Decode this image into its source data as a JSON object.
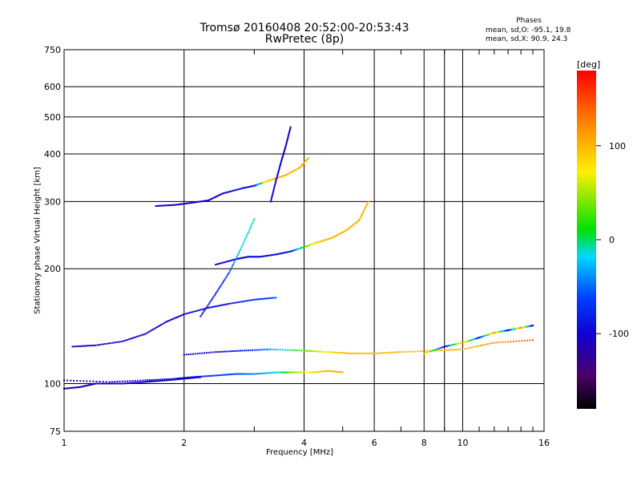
{
  "chart_data": {
    "type": "scatter",
    "title": "Tromsø 20160408 20:52:00-20:53:43",
    "subtitle": "RwPretec (8p)",
    "xlabel": "Frequency [MHz]",
    "ylabel": "Stationary phase Virtual Height [km]",
    "x_scale": "log",
    "y_scale": "log",
    "xlim": [
      1,
      16
    ],
    "ylim": [
      75,
      750
    ],
    "x_ticks": [
      1,
      2,
      4,
      6,
      8,
      10,
      16
    ],
    "y_ticks": [
      75,
      100,
      200,
      300,
      400,
      500,
      600,
      750
    ],
    "grid": true,
    "phases": {
      "heading": "Phases",
      "o_mode": "mean, sd,O: -95.1, 19.8",
      "x_mode": "mean, sd,X:  90.9, 24.3"
    },
    "colorbar": {
      "label": "[deg]",
      "ticks": [
        100,
        0,
        -100
      ],
      "range": [
        -180,
        180
      ],
      "colormap": "rainbow (black-purple-blue-cyan-green-yellow-red)"
    },
    "traces": [
      {
        "x": [
          1.0,
          1.3,
          1.6,
          1.9,
          2.1,
          2.4,
          2.7,
          3.0,
          3.4,
          3.8,
          4.2,
          4.6,
          5.0
        ],
        "y": [
          102,
          101,
          102,
          103,
          104,
          105,
          106,
          106,
          107,
          107,
          107,
          108,
          107
        ],
        "phase": [
          -100,
          -100,
          -100,
          -95,
          -90,
          -60,
          -60,
          -40,
          -20,
          50,
          80,
          100,
          100
        ]
      },
      {
        "x": [
          1.05,
          1.2,
          1.4,
          1.6,
          1.8,
          2.0,
          2.3,
          2.6,
          3.0,
          3.4
        ],
        "y": [
          125,
          126,
          129,
          135,
          145,
          152,
          158,
          162,
          166,
          168
        ],
        "phase": [
          -110,
          -110,
          -105,
          -105,
          -100,
          -100,
          -95,
          -90,
          -80,
          -50
        ]
      },
      {
        "x": [
          2.0,
          2.4,
          2.8,
          3.3,
          4.0,
          4.6,
          5.2,
          6.0,
          7.0,
          8.5,
          10,
          12,
          15
        ],
        "y": [
          119,
          121,
          122,
          123,
          122,
          121,
          120,
          120,
          121,
          122,
          123,
          128,
          130
        ],
        "phase": [
          -100,
          -95,
          -80,
          -40,
          30,
          80,
          100,
          100,
          100,
          100,
          100,
          120,
          140
        ]
      },
      {
        "x": [
          2.4,
          2.7,
          2.9,
          3.1,
          3.4,
          3.7,
          4.0,
          4.3,
          4.7,
          5.1,
          5.5,
          5.8
        ],
        "y": [
          205,
          212,
          215,
          215,
          218,
          222,
          228,
          234,
          241,
          252,
          268,
          300
        ],
        "phase": [
          -100,
          -100,
          -95,
          -90,
          -90,
          -80,
          20,
          90,
          100,
          100,
          100,
          100
        ]
      },
      {
        "x": [
          1.7,
          1.9,
          2.1,
          2.3,
          2.5,
          2.8,
          3.0,
          3.2,
          3.4,
          3.6,
          3.9,
          4.1
        ],
        "y": [
          292,
          294,
          298,
          302,
          315,
          325,
          330,
          338,
          345,
          352,
          368,
          390
        ],
        "phase": [
          -105,
          -105,
          -100,
          -100,
          -95,
          -90,
          -85,
          80,
          100,
          100,
          100,
          100
        ]
      },
      {
        "x": [
          3.3,
          3.4,
          3.5,
          3.6,
          3.7
        ],
        "y": [
          300,
          340,
          380,
          420,
          470
        ],
        "phase": [
          -100,
          -100,
          -100,
          -100,
          -100
        ]
      },
      {
        "x": [
          1.0,
          1.1,
          1.2,
          1.4,
          1.6,
          1.8,
          2.0,
          2.2
        ],
        "y": [
          97,
          98,
          100,
          100,
          101,
          102,
          103,
          104
        ],
        "phase": [
          -120,
          -115,
          -110,
          -110,
          -105,
          -100,
          -100,
          -100
        ]
      },
      {
        "x": [
          2.2,
          2.4,
          2.6,
          2.8,
          3.0
        ],
        "y": [
          150,
          172,
          196,
          230,
          270
        ],
        "phase": [
          -95,
          -90,
          -60,
          -20,
          -10
        ]
      },
      {
        "x": [
          8.0,
          9.0,
          10.0,
          11.0,
          12.0,
          13.0,
          14.0,
          15.0
        ],
        "y": [
          120,
          125,
          128,
          132,
          136,
          138,
          140,
          142
        ],
        "phase": [
          100,
          -100,
          110,
          -90,
          120,
          -100,
          130,
          -110
        ]
      }
    ]
  }
}
